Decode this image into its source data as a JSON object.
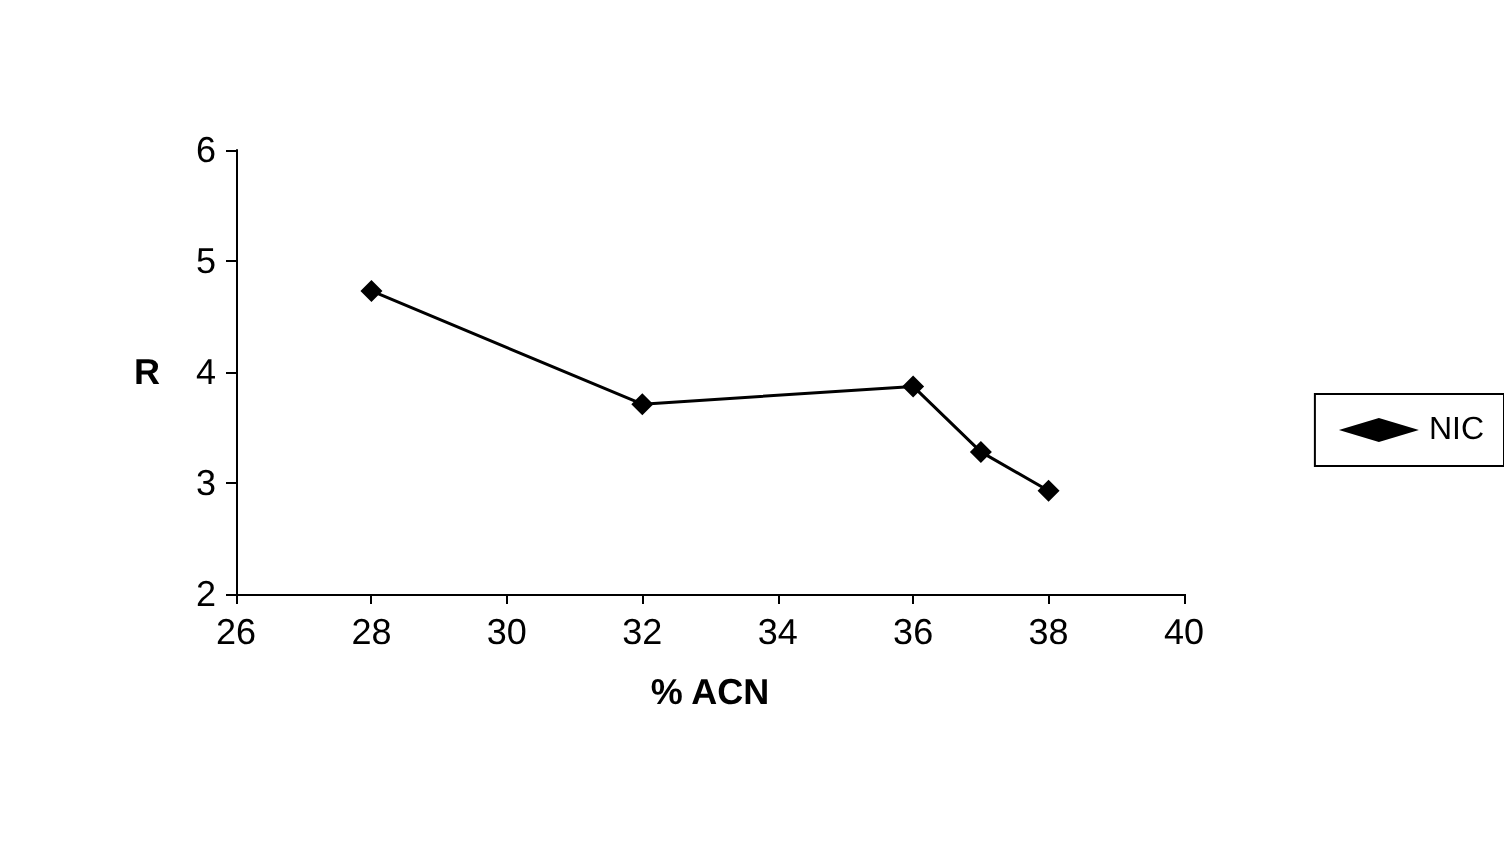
{
  "chart_data": {
    "type": "line",
    "xlabel": "% ACN",
    "ylabel": "R",
    "series": [
      {
        "name": "NIC",
        "color": "#000000",
        "x": [
          28,
          32,
          36,
          37,
          38
        ],
        "values": [
          4.73,
          3.71,
          3.87,
          3.28,
          2.93
        ]
      }
    ],
    "xlim": [
      26,
      40
    ],
    "xticks": [
      26,
      28,
      30,
      32,
      34,
      36,
      38,
      40
    ],
    "ylim": [
      2,
      6
    ],
    "yticks": [
      2,
      3,
      4,
      5,
      6
    ],
    "grid": false,
    "legend": "right",
    "marker": "diamond",
    "line_style": "solid"
  }
}
